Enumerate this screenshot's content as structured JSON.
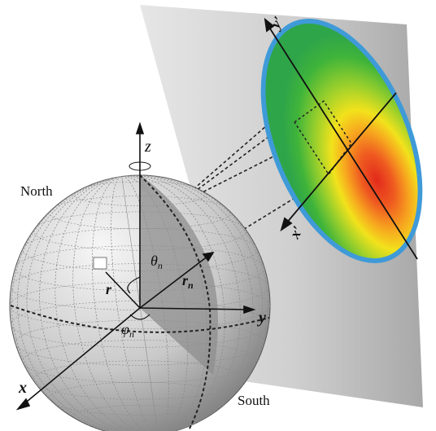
{
  "labels": {
    "north": "North",
    "south": "South",
    "axis_x": "x",
    "axis_y": "y",
    "axis_z": "z",
    "vector_r": "r",
    "vector_rn": "r",
    "vector_rn_sub": "n",
    "theta": "θ",
    "theta_sub": "n",
    "phi": "φ",
    "phi_sub": "n",
    "proj_x": "x",
    "proj_x_prime": "′",
    "proj_y": "y",
    "proj_y_prime": "′"
  },
  "colors": {
    "sphere_light": "#ededed",
    "sphere_dark": "#7c7c7c",
    "shaded_section": "#9a9a9a",
    "plane": "#cfcfcf",
    "ellipse_rim": "#3f9ad8",
    "heat_low": "#3fb43a",
    "heat_mid": "#f2e21c",
    "heat_high": "#e8321f"
  }
}
